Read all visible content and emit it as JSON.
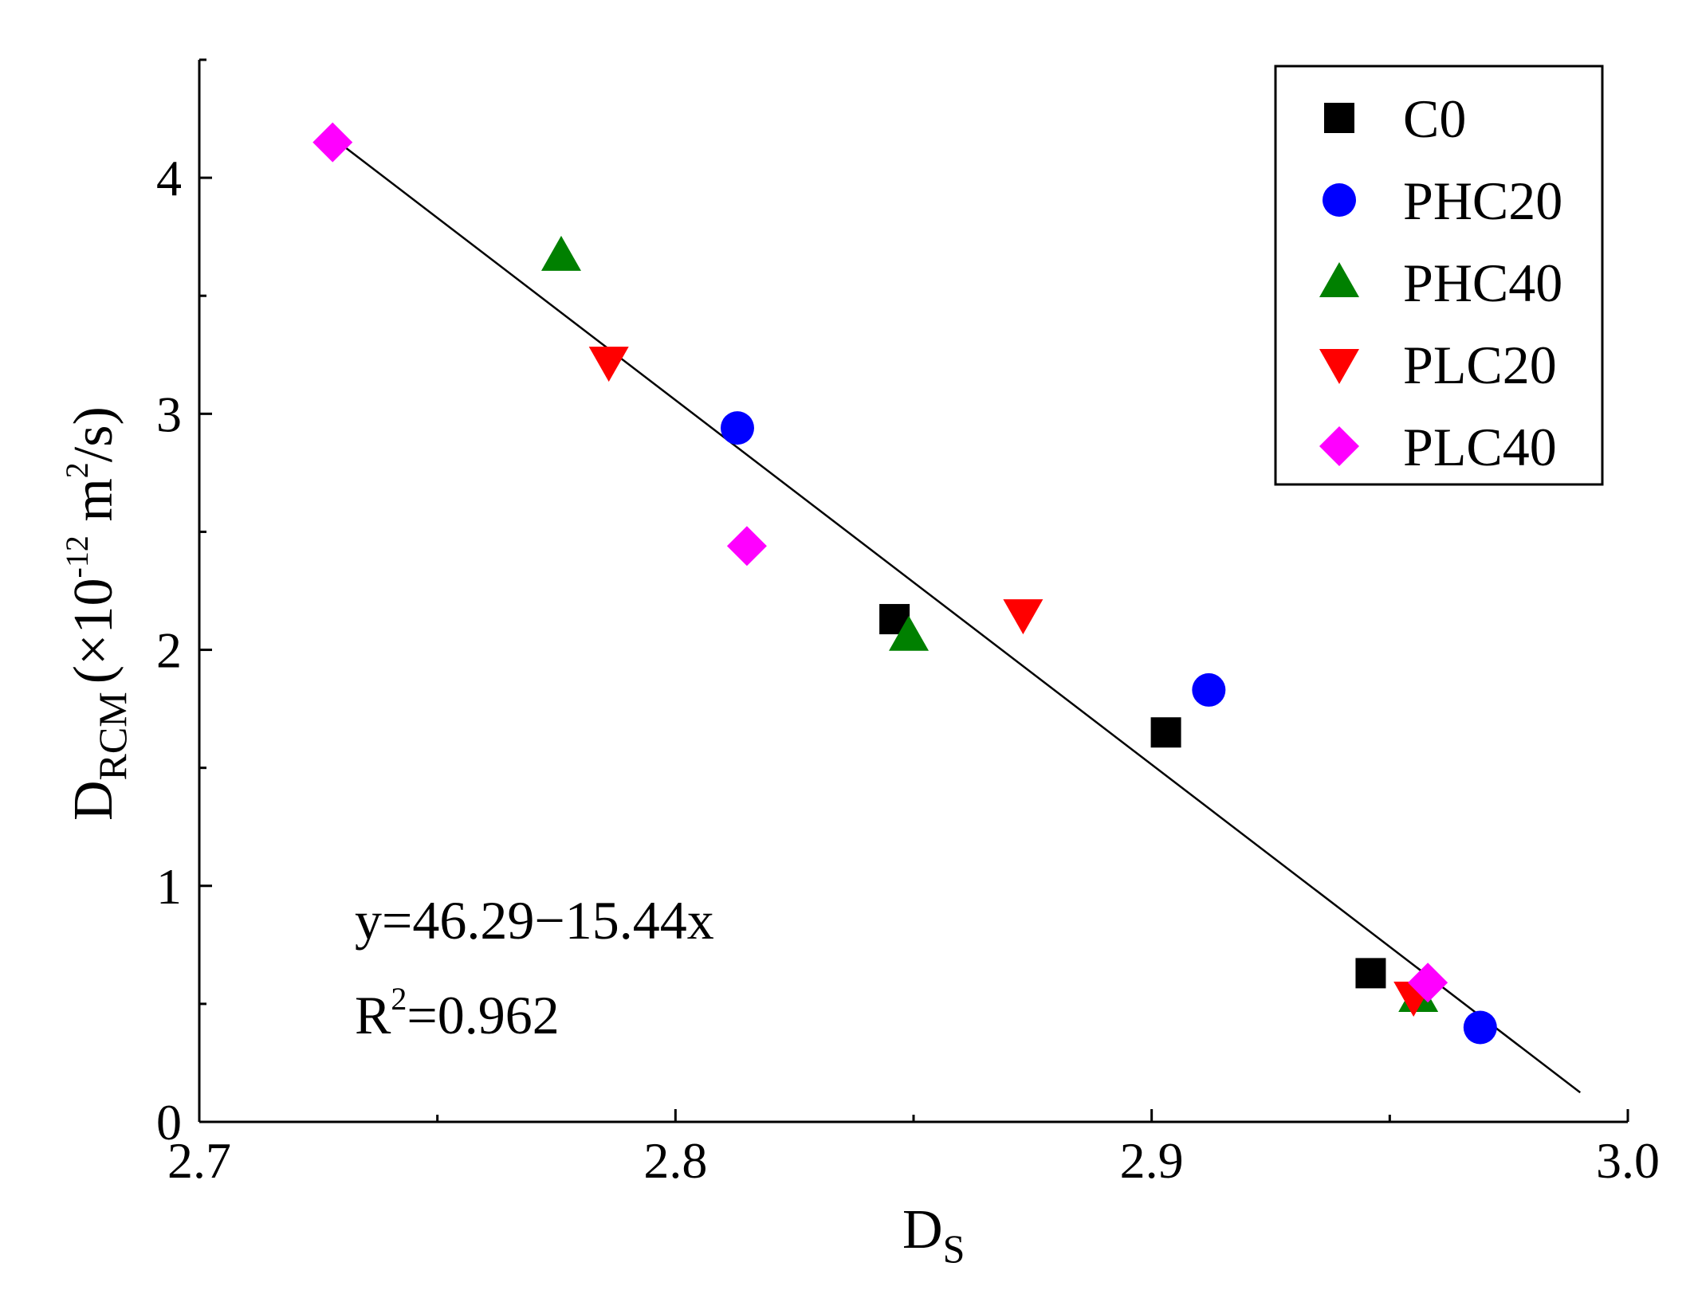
{
  "chart_data": {
    "type": "scatter",
    "title": "",
    "xlabel": {
      "main": "D",
      "sub": "S"
    },
    "ylabel": {
      "main": "D",
      "sub": "RCM",
      "unit_prefix": "(×10",
      "exponent": "-12",
      "unit_mid": " m",
      "unit_exp": "2",
      "unit_suffix": "/s)"
    },
    "xlim": [
      2.7,
      3.0
    ],
    "ylim": [
      0,
      4.5
    ],
    "xticks": [
      2.7,
      2.8,
      2.9,
      3.0
    ],
    "xtick_labels": [
      "2.7",
      "2.8",
      "2.9",
      "3.0"
    ],
    "yticks": [
      0,
      1,
      2,
      3,
      4
    ],
    "ytick_labels": [
      "0",
      "1",
      "2",
      "3",
      "4"
    ],
    "grid": false,
    "legend_position": "top-right",
    "series": [
      {
        "name": "C0",
        "marker": "square",
        "color": "#000000",
        "x": [
          2.846,
          2.903,
          2.946
        ],
        "y": [
          2.13,
          1.65,
          0.63
        ]
      },
      {
        "name": "PHC20",
        "marker": "circle",
        "color": "#0000ff",
        "x": [
          2.813,
          2.912,
          2.969
        ],
        "y": [
          2.94,
          1.83,
          0.4
        ]
      },
      {
        "name": "PHC40",
        "marker": "triangle-up",
        "color": "#008000",
        "x": [
          2.776,
          2.849,
          2.956
        ],
        "y": [
          3.67,
          2.06,
          0.53
        ]
      },
      {
        "name": "PLC20",
        "marker": "triangle-down",
        "color": "#ff0000",
        "x": [
          2.786,
          2.873,
          2.955
        ],
        "y": [
          3.22,
          2.15,
          0.53
        ]
      },
      {
        "name": "PLC40",
        "marker": "diamond",
        "color": "#ff00ff",
        "x": [
          2.728,
          2.815,
          2.958
        ],
        "y": [
          4.15,
          2.44,
          0.59
        ]
      }
    ],
    "fit_line": {
      "intercept": 46.29,
      "slope": -15.44,
      "x_range": [
        2.728,
        2.99
      ],
      "color": "#000000"
    },
    "annotations": {
      "equation": "y=46.29−15.44x",
      "r2_prefix": "R",
      "r2_exp": "2",
      "r2_value": "=0.962"
    }
  }
}
